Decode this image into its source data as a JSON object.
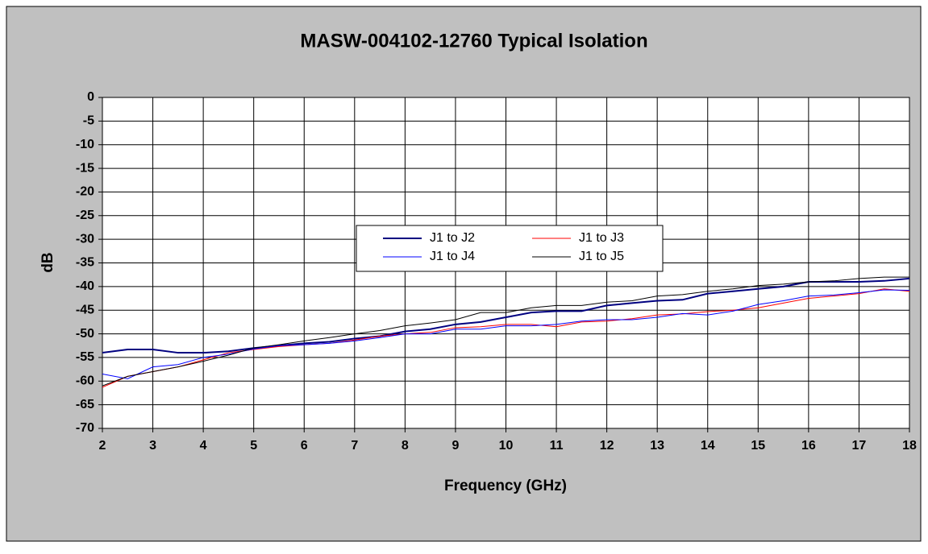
{
  "chart_data": {
    "type": "line",
    "title": "MASW-004102-12760 Typical Isolation",
    "xlabel": "Frequency (GHz)",
    "ylabel": "dB",
    "x": [
      2,
      2.5,
      3,
      3.5,
      4,
      4.5,
      5,
      5.5,
      6,
      6.5,
      7,
      7.5,
      8,
      8.5,
      9,
      9.5,
      10,
      10.5,
      11,
      11.5,
      12,
      12.5,
      13,
      13.5,
      14,
      14.5,
      15,
      15.5,
      16,
      16.5,
      17,
      17.5,
      18
    ],
    "series": [
      {
        "name": "J1 to J2",
        "color": "#000080",
        "values": [
          -54,
          -53.3,
          -53.3,
          -54,
          -54,
          -53.7,
          -53,
          -52.5,
          -52,
          -51.7,
          -51,
          -50.5,
          -49.5,
          -49,
          -48,
          -47.5,
          -46.5,
          -45.5,
          -45.2,
          -45.2,
          -44,
          -43.5,
          -43,
          -42.8,
          -41.5,
          -41,
          -40.5,
          -40,
          -39,
          -39,
          -39,
          -38.8,
          -38.3
        ]
      },
      {
        "name": "J1 to J3",
        "color": "#ff0000",
        "values": [
          -61.3,
          -59,
          -58,
          -57,
          -55.5,
          -54,
          -53.3,
          -52.7,
          -52.3,
          -52,
          -51.3,
          -50.5,
          -50,
          -49.7,
          -48.7,
          -48.5,
          -48,
          -48,
          -48.5,
          -47.5,
          -47.3,
          -46.8,
          -46,
          -45.8,
          -45.3,
          -45,
          -44.5,
          -43.5,
          -42.5,
          -42,
          -41.5,
          -40.5,
          -41
        ]
      },
      {
        "name": "J1 to J4",
        "color": "#0000ff",
        "values": [
          -58.5,
          -59.5,
          -57,
          -56.5,
          -55,
          -54.3,
          -53.2,
          -52.5,
          -52.3,
          -52,
          -51.5,
          -50.8,
          -50,
          -50,
          -49,
          -49,
          -48.3,
          -48.3,
          -48,
          -47.3,
          -47,
          -47,
          -46.5,
          -45.7,
          -46,
          -45.2,
          -43.8,
          -43,
          -42,
          -41.8,
          -41.3,
          -40.7,
          -40.8
        ]
      },
      {
        "name": "J1 to J5",
        "color": "#000000",
        "values": [
          -61,
          -59,
          -58,
          -57,
          -55.8,
          -54.5,
          -53,
          -52.3,
          -51.5,
          -50.8,
          -50,
          -49.3,
          -48.3,
          -47.7,
          -47,
          -45.5,
          -45.5,
          -44.5,
          -44,
          -44,
          -43.3,
          -43,
          -42,
          -41.7,
          -41,
          -40.5,
          -39.8,
          -39.5,
          -39,
          -38.8,
          -38.3,
          -38,
          -38
        ]
      }
    ],
    "xlim": [
      2,
      18
    ],
    "xticks": [
      2,
      3,
      4,
      5,
      6,
      7,
      8,
      9,
      10,
      11,
      12,
      13,
      14,
      15,
      16,
      17,
      18
    ],
    "ylim": [
      -70,
      0
    ],
    "yticks": [
      0,
      -5,
      -10,
      -15,
      -20,
      -25,
      -30,
      -35,
      -40,
      -45,
      -50,
      -55,
      -60,
      -65,
      -70
    ],
    "grid": true,
    "legend": "center"
  }
}
